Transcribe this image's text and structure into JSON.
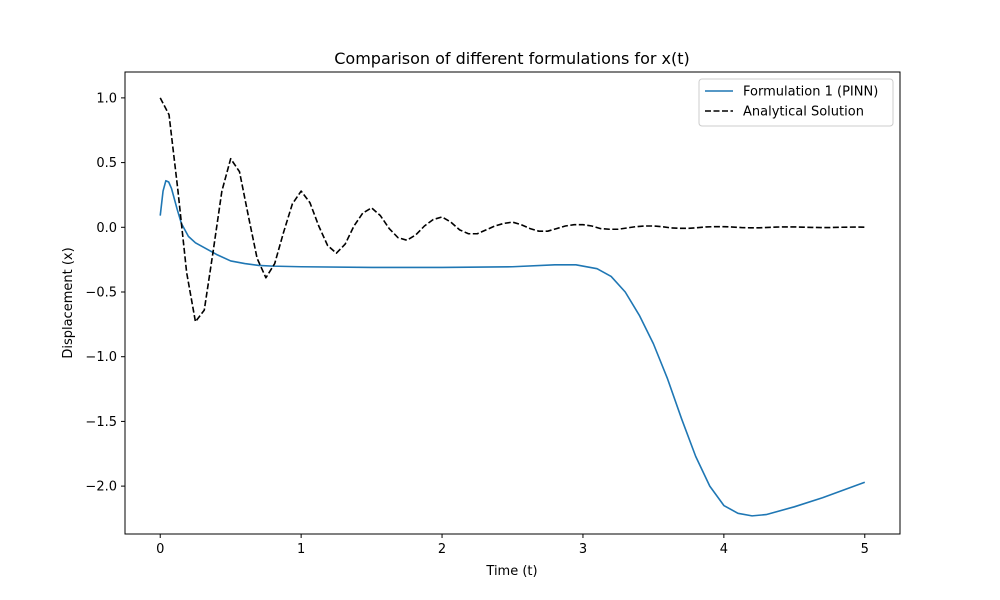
{
  "chart_data": {
    "type": "line",
    "title": "Comparison of different formulations for x(t)",
    "xlabel": "Time (t)",
    "ylabel": "Displacement (x)",
    "xlim": [
      -0.25,
      5.25
    ],
    "ylim": [
      -2.37,
      1.2
    ],
    "xticks": [
      0,
      1,
      2,
      3,
      4,
      5
    ],
    "xtick_labels": [
      "0",
      "1",
      "2",
      "3",
      "4",
      "5"
    ],
    "yticks": [
      1.0,
      0.5,
      0.0,
      -0.5,
      -1.0,
      -1.5,
      -2.0
    ],
    "ytick_labels": [
      "1.0",
      "0.5",
      "0.0",
      "−0.5",
      "−1.0",
      "−1.5",
      "−2.0"
    ],
    "grid": false,
    "legend_position": "top-right",
    "series": [
      {
        "name": "Formulation 1 (PINN)",
        "color": "#1f77b4",
        "style": "solid",
        "x": [
          0.0,
          0.02,
          0.04,
          0.06,
          0.08,
          0.1,
          0.12,
          0.15,
          0.2,
          0.25,
          0.3,
          0.35,
          0.4,
          0.5,
          0.6,
          0.7,
          0.8,
          1.0,
          1.5,
          2.0,
          2.5,
          2.8,
          2.95,
          3.1,
          3.2,
          3.3,
          3.4,
          3.5,
          3.6,
          3.7,
          3.8,
          3.9,
          4.0,
          4.1,
          4.2,
          4.3,
          4.5,
          4.7,
          5.0
        ],
        "y": [
          0.09,
          0.28,
          0.36,
          0.35,
          0.3,
          0.22,
          0.14,
          0.03,
          -0.07,
          -0.12,
          -0.15,
          -0.18,
          -0.21,
          -0.26,
          -0.28,
          -0.295,
          -0.3,
          -0.305,
          -0.31,
          -0.31,
          -0.305,
          -0.29,
          -0.29,
          -0.32,
          -0.38,
          -0.5,
          -0.68,
          -0.9,
          -1.17,
          -1.48,
          -1.77,
          -2.0,
          -2.15,
          -2.21,
          -2.23,
          -2.22,
          -2.16,
          -2.09,
          -1.97
        ]
      },
      {
        "name": "Analytical Solution",
        "color": "#000000",
        "style": "dashed",
        "x": [
          0.0,
          0.0625,
          0.125,
          0.1875,
          0.25,
          0.3125,
          0.375,
          0.4375,
          0.5,
          0.5625,
          0.625,
          0.6875,
          0.75,
          0.8125,
          0.875,
          0.9375,
          1.0,
          1.0625,
          1.125,
          1.1875,
          1.25,
          1.3125,
          1.375,
          1.4375,
          1.5,
          1.5625,
          1.625,
          1.6875,
          1.75,
          1.8125,
          1.875,
          1.9375,
          2.0,
          2.0625,
          2.125,
          2.1875,
          2.25,
          2.3125,
          2.375,
          2.4375,
          2.5,
          2.5625,
          2.625,
          2.6875,
          2.75,
          2.8125,
          2.875,
          2.9375,
          3.0,
          3.0625,
          3.125,
          3.1875,
          3.25,
          3.3125,
          3.375,
          3.4375,
          3.5,
          3.5625,
          3.625,
          3.6875,
          3.75,
          3.8125,
          3.875,
          3.9375,
          4.0,
          4.0625,
          4.125,
          4.1875,
          4.25,
          4.3125,
          4.375,
          4.4375,
          4.5,
          4.5625,
          4.625,
          4.6875,
          4.75,
          4.8125,
          4.875,
          4.9375,
          5.0
        ],
        "y": [
          1.0,
          0.87,
          0.29,
          -0.35,
          -0.73,
          -0.64,
          -0.19,
          0.28,
          0.53,
          0.43,
          0.09,
          -0.24,
          -0.39,
          -0.28,
          -0.04,
          0.18,
          0.28,
          0.19,
          0.01,
          -0.14,
          -0.2,
          -0.13,
          0.01,
          0.11,
          0.15,
          0.09,
          -0.01,
          -0.08,
          -0.1,
          -0.06,
          0.01,
          0.06,
          0.08,
          0.04,
          -0.02,
          -0.05,
          -0.05,
          -0.02,
          0.01,
          0.03,
          0.04,
          0.02,
          -0.01,
          -0.03,
          -0.03,
          -0.01,
          0.01,
          0.02,
          0.02,
          0.01,
          -0.01,
          -0.015,
          -0.015,
          -0.005,
          0.005,
          0.01,
          0.01,
          0.005,
          -0.005,
          -0.008,
          -0.008,
          -0.003,
          0.003,
          0.005,
          0.005,
          0.002,
          -0.002,
          -0.004,
          -0.004,
          -0.001,
          0.002,
          0.003,
          0.003,
          0.001,
          -0.001,
          -0.002,
          -0.002,
          0.0,
          0.001,
          0.002,
          0.001
        ]
      }
    ]
  }
}
